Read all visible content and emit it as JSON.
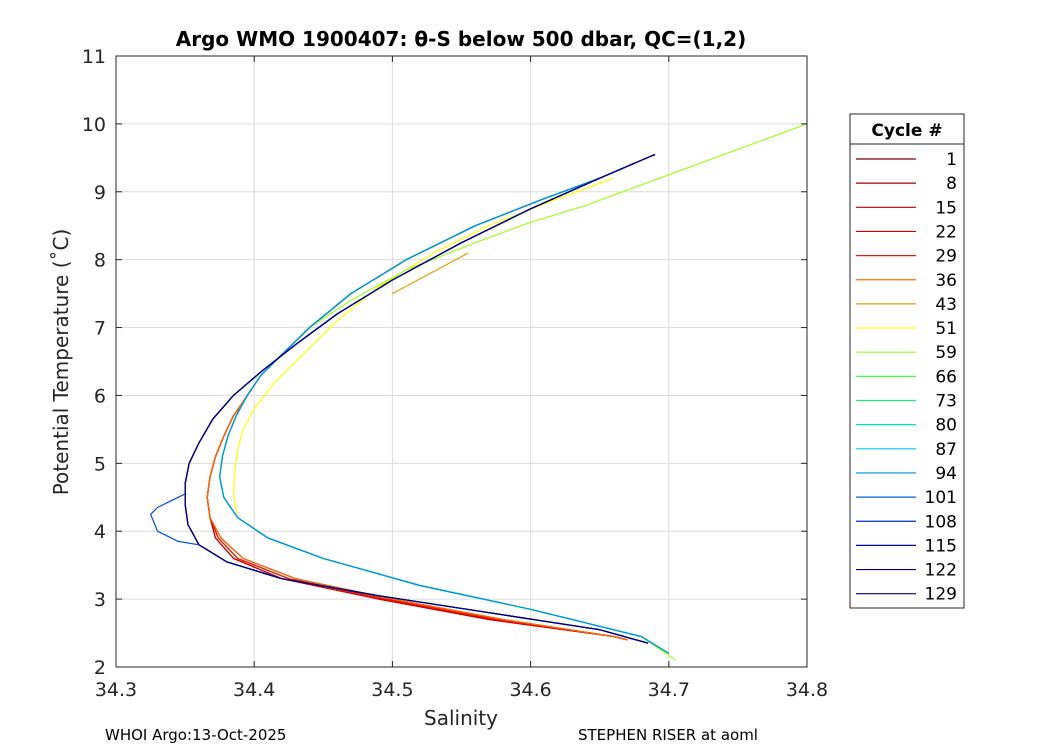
{
  "chart_data": {
    "type": "line",
    "title": "Argo WMO 1900407: θ-S below 500 dbar,  QC=(1,2)",
    "xlabel": "Salinity",
    "ylabel": "Potential Temperature (˚C)",
    "xlim": [
      34.3,
      34.8
    ],
    "ylim": [
      2,
      11
    ],
    "xticks": [
      "34.3",
      "34.4",
      "34.5",
      "34.6",
      "34.7",
      "34.8"
    ],
    "yticks": [
      "2",
      "3",
      "4",
      "5",
      "6",
      "7",
      "8",
      "9",
      "10",
      "11"
    ],
    "grid": true,
    "legend": {
      "title": "Cycle #",
      "placement": "right"
    },
    "colormap": "jet (cycle 1 dark red → cycle 129 dark blue)",
    "series": [
      {
        "name": "1",
        "color": "#800000",
        "x": [
          34.65,
          34.61,
          34.56,
          34.51,
          34.47,
          34.44,
          34.42,
          34.405,
          34.395,
          34.385,
          34.378,
          34.372,
          34.368,
          34.366,
          34.368,
          34.376,
          34.392,
          34.43,
          34.5,
          34.58,
          34.66,
          34.67
        ],
        "y": [
          9.2,
          8.9,
          8.5,
          8.0,
          7.5,
          7.0,
          6.6,
          6.3,
          6.0,
          5.7,
          5.4,
          5.1,
          4.8,
          4.5,
          4.2,
          3.9,
          3.6,
          3.3,
          3.0,
          2.7,
          2.45,
          2.4
        ]
      },
      {
        "name": "8",
        "color": "#9a0000",
        "x": [
          34.65,
          34.61,
          34.56,
          34.51,
          34.47,
          34.44,
          34.42,
          34.405,
          34.395,
          34.385,
          34.378,
          34.372,
          34.368,
          34.366,
          34.368,
          34.374,
          34.388,
          34.425,
          34.495,
          34.575,
          34.66,
          34.67
        ],
        "y": [
          9.2,
          8.9,
          8.5,
          8.0,
          7.5,
          7.0,
          6.6,
          6.3,
          6.0,
          5.7,
          5.4,
          5.1,
          4.8,
          4.5,
          4.2,
          3.9,
          3.6,
          3.3,
          3.0,
          2.7,
          2.45,
          2.4
        ]
      },
      {
        "name": "15",
        "color": "#b00000",
        "x": [
          34.65,
          34.61,
          34.56,
          34.51,
          34.47,
          34.44,
          34.42,
          34.405,
          34.395,
          34.385,
          34.378,
          34.372,
          34.368,
          34.366,
          34.368,
          34.372,
          34.385,
          34.42,
          34.49,
          34.57,
          34.66,
          34.67
        ],
        "y": [
          9.2,
          8.9,
          8.5,
          8.0,
          7.5,
          7.0,
          6.6,
          6.3,
          6.0,
          5.7,
          5.4,
          5.1,
          4.8,
          4.5,
          4.2,
          3.9,
          3.6,
          3.3,
          3.0,
          2.7,
          2.45,
          2.4
        ]
      },
      {
        "name": "22",
        "color": "#cc0000",
        "x": [
          34.65,
          34.61,
          34.56,
          34.51,
          34.47,
          34.44,
          34.42,
          34.405,
          34.395,
          34.385,
          34.378,
          34.372,
          34.368,
          34.366,
          34.368,
          34.372,
          34.385,
          34.42,
          34.49,
          34.57,
          34.66,
          34.67
        ],
        "y": [
          9.2,
          8.9,
          8.5,
          8.0,
          7.5,
          7.0,
          6.6,
          6.3,
          6.0,
          5.7,
          5.4,
          5.1,
          4.8,
          4.5,
          4.2,
          3.9,
          3.6,
          3.3,
          3.0,
          2.7,
          2.45,
          2.4
        ]
      },
      {
        "name": "29",
        "color": "#ee1800",
        "x": [
          34.65,
          34.61,
          34.56,
          34.51,
          34.47,
          34.44,
          34.42,
          34.405,
          34.395,
          34.385,
          34.378,
          34.372,
          34.368,
          34.366,
          34.368,
          34.374,
          34.388,
          34.425,
          34.495,
          34.575,
          34.66,
          34.67
        ],
        "y": [
          9.2,
          8.9,
          8.5,
          8.0,
          7.5,
          7.0,
          6.6,
          6.3,
          6.0,
          5.7,
          5.4,
          5.1,
          4.8,
          4.5,
          4.2,
          3.9,
          3.6,
          3.3,
          3.0,
          2.7,
          2.45,
          2.4
        ]
      },
      {
        "name": "36",
        "color": "#ff6a00",
        "x": [
          34.65,
          34.61,
          34.56,
          34.51,
          34.47,
          34.44,
          34.42,
          34.405,
          34.395,
          34.385,
          34.378,
          34.372,
          34.368,
          34.366,
          34.368,
          34.376,
          34.392,
          34.43,
          34.5,
          34.58,
          34.66,
          34.67
        ],
        "y": [
          9.2,
          8.9,
          8.5,
          8.0,
          7.5,
          7.0,
          6.6,
          6.3,
          6.0,
          5.7,
          5.4,
          5.1,
          4.8,
          4.5,
          4.2,
          3.9,
          3.6,
          3.3,
          3.0,
          2.7,
          2.45,
          2.4
        ]
      },
      {
        "name": "43",
        "color": "#e0a000",
        "x": [
          34.555,
          34.5
        ],
        "y": [
          8.1,
          7.5
        ]
      },
      {
        "name": "51",
        "color": "#ffff00",
        "x": [
          34.66,
          34.62,
          34.57,
          34.53,
          34.49,
          34.46,
          34.435,
          34.415,
          34.4,
          34.392,
          34.388,
          34.386,
          34.385,
          34.386,
          34.388
        ],
        "y": [
          9.2,
          8.9,
          8.5,
          8.1,
          7.6,
          7.1,
          6.6,
          6.2,
          5.8,
          5.5,
          5.2,
          4.9,
          4.6,
          4.4,
          4.25
        ]
      },
      {
        "name": "59",
        "color": "#a0ff20",
        "x": [
          34.8,
          34.76,
          34.72,
          34.68,
          34.64,
          34.6,
          34.56,
          34.51,
          34.47,
          34.44,
          34.42,
          34.405,
          34.395,
          34.387,
          34.381,
          34.377,
          34.375,
          34.378,
          34.388,
          34.41,
          34.45,
          34.52,
          34.6,
          34.68,
          34.705
        ],
        "y": [
          10.0,
          9.7,
          9.4,
          9.1,
          8.8,
          8.55,
          8.25,
          7.85,
          7.4,
          7.0,
          6.6,
          6.3,
          6.0,
          5.7,
          5.4,
          5.1,
          4.8,
          4.5,
          4.2,
          3.9,
          3.6,
          3.2,
          2.85,
          2.45,
          2.1
        ]
      },
      {
        "name": "66",
        "color": "#40ff40",
        "x": [
          34.65,
          34.61,
          34.56,
          34.51,
          34.47,
          34.44,
          34.42,
          34.405,
          34.395,
          34.387,
          34.381,
          34.377,
          34.375,
          34.378,
          34.388,
          34.41,
          34.45,
          34.52,
          34.6,
          34.68,
          34.7
        ],
        "y": [
          9.2,
          8.9,
          8.5,
          8.0,
          7.5,
          7.0,
          6.6,
          6.3,
          6.0,
          5.7,
          5.4,
          5.1,
          4.8,
          4.5,
          4.2,
          3.9,
          3.6,
          3.2,
          2.85,
          2.45,
          2.2
        ]
      },
      {
        "name": "73",
        "color": "#20e880",
        "x": [
          34.65,
          34.61,
          34.56,
          34.51,
          34.47,
          34.44,
          34.42,
          34.405,
          34.395,
          34.387,
          34.381,
          34.377,
          34.375,
          34.378,
          34.388,
          34.41,
          34.45,
          34.52,
          34.6,
          34.68,
          34.7
        ],
        "y": [
          9.2,
          8.9,
          8.5,
          8.0,
          7.5,
          7.0,
          6.6,
          6.3,
          6.0,
          5.7,
          5.4,
          5.1,
          4.8,
          4.5,
          4.2,
          3.9,
          3.6,
          3.2,
          2.85,
          2.45,
          2.2
        ]
      },
      {
        "name": "80",
        "color": "#00e0c0",
        "x": [
          34.65,
          34.61,
          34.56,
          34.51,
          34.47,
          34.44,
          34.42,
          34.405,
          34.395,
          34.387,
          34.381,
          34.377,
          34.375,
          34.378,
          34.388,
          34.41,
          34.45,
          34.52,
          34.6,
          34.68,
          34.7
        ],
        "y": [
          9.2,
          8.9,
          8.5,
          8.0,
          7.5,
          7.0,
          6.6,
          6.3,
          6.0,
          5.7,
          5.4,
          5.1,
          4.8,
          4.5,
          4.2,
          3.9,
          3.6,
          3.2,
          2.85,
          2.45,
          2.2
        ]
      },
      {
        "name": "87",
        "color": "#00c8ff",
        "x": [
          34.65,
          34.61,
          34.56,
          34.51,
          34.47,
          34.44,
          34.42,
          34.405,
          34.395,
          34.387,
          34.381,
          34.377,
          34.375,
          34.378,
          34.388,
          34.41,
          34.45,
          34.52,
          34.6,
          34.68,
          34.7
        ],
        "y": [
          9.2,
          8.9,
          8.5,
          8.0,
          7.5,
          7.0,
          6.6,
          6.3,
          6.0,
          5.7,
          5.4,
          5.1,
          4.8,
          4.5,
          4.2,
          3.9,
          3.6,
          3.2,
          2.85,
          2.45,
          2.2
        ]
      },
      {
        "name": "94",
        "color": "#0090e0",
        "x": [
          34.65,
          34.61,
          34.56,
          34.51,
          34.47,
          34.44,
          34.42,
          34.405,
          34.395,
          34.387,
          34.381,
          34.377,
          34.375,
          34.378,
          34.388,
          34.41,
          34.45,
          34.52,
          34.6,
          34.68,
          34.7
        ],
        "y": [
          9.2,
          8.9,
          8.5,
          8.0,
          7.5,
          7.0,
          6.6,
          6.3,
          6.0,
          5.7,
          5.4,
          5.1,
          4.8,
          4.5,
          4.2,
          3.9,
          3.6,
          3.2,
          2.85,
          2.45,
          2.2
        ]
      },
      {
        "name": "101",
        "color": "#0060d0",
        "x": [
          34.69,
          34.65,
          34.6,
          34.55,
          34.5,
          34.46,
          34.43,
          34.405,
          34.385,
          34.37,
          34.36,
          34.353,
          34.35,
          34.35,
          34.352,
          34.36,
          34.38,
          34.42,
          34.49,
          34.57,
          34.65,
          34.685
        ],
        "y": [
          9.55,
          9.2,
          8.75,
          8.25,
          7.7,
          7.2,
          6.75,
          6.35,
          6.0,
          5.65,
          5.3,
          5.0,
          4.7,
          4.4,
          4.1,
          3.8,
          3.55,
          3.3,
          3.05,
          2.8,
          2.55,
          2.35
        ]
      },
      {
        "name": "108",
        "color": "#0030c0",
        "x": [
          34.69,
          34.65,
          34.6,
          34.55,
          34.5,
          34.46,
          34.43,
          34.405,
          34.385,
          34.37,
          34.36,
          34.353,
          34.35,
          34.35,
          34.352,
          34.36,
          34.38,
          34.42,
          34.49,
          34.57,
          34.65,
          34.685
        ],
        "y": [
          9.55,
          9.2,
          8.75,
          8.25,
          7.7,
          7.2,
          6.75,
          6.35,
          6.0,
          5.65,
          5.3,
          5.0,
          4.7,
          4.4,
          4.1,
          3.8,
          3.55,
          3.3,
          3.05,
          2.8,
          2.55,
          2.35
        ]
      },
      {
        "name": "115",
        "color": "#0000b0",
        "x": [
          34.69,
          34.65,
          34.6,
          34.55,
          34.5,
          34.46,
          34.43,
          34.405,
          34.385,
          34.37,
          34.36,
          34.353,
          34.35,
          34.35,
          34.352,
          34.36,
          34.38,
          34.42,
          34.49,
          34.57,
          34.65,
          34.685
        ],
        "y": [
          9.55,
          9.2,
          8.75,
          8.25,
          7.7,
          7.2,
          6.75,
          6.35,
          6.0,
          5.65,
          5.3,
          5.0,
          4.7,
          4.4,
          4.1,
          3.8,
          3.55,
          3.3,
          3.05,
          2.8,
          2.55,
          2.35
        ]
      },
      {
        "name": "122",
        "color": "#000098",
        "x": [
          34.69,
          34.65,
          34.6,
          34.55,
          34.5,
          34.46,
          34.43,
          34.405,
          34.385,
          34.37,
          34.36,
          34.353,
          34.35,
          34.35,
          34.352,
          34.36,
          34.38,
          34.42,
          34.49,
          34.57,
          34.65,
          34.685
        ],
        "y": [
          9.55,
          9.2,
          8.75,
          8.25,
          7.7,
          7.2,
          6.75,
          6.35,
          6.0,
          5.65,
          5.3,
          5.0,
          4.7,
          4.4,
          4.1,
          3.8,
          3.55,
          3.3,
          3.05,
          2.8,
          2.55,
          2.35
        ]
      },
      {
        "name": "129",
        "color": "#000080",
        "x": [
          34.69,
          34.65,
          34.6,
          34.55,
          34.5,
          34.46,
          34.43,
          34.405,
          34.385,
          34.37,
          34.36,
          34.353,
          34.35,
          34.35,
          34.352,
          34.36,
          34.38,
          34.42,
          34.49,
          34.57,
          34.65,
          34.685
        ],
        "y": [
          9.55,
          9.2,
          8.75,
          8.25,
          7.7,
          7.2,
          6.75,
          6.35,
          6.0,
          5.65,
          5.3,
          5.0,
          4.7,
          4.4,
          4.1,
          3.8,
          3.55,
          3.3,
          3.05,
          2.8,
          2.55,
          2.35
        ]
      },
      {
        "name": "",
        "color": "#0050e0",
        "x": [
          34.35,
          34.34,
          34.33,
          34.325,
          34.33,
          34.345,
          34.36
        ],
        "y": [
          4.55,
          4.45,
          4.35,
          4.25,
          4.0,
          3.85,
          3.8
        ]
      }
    ]
  },
  "footer": {
    "left": "WHOI Argo:13-Oct-2025",
    "right": "STEPHEN RISER at aoml"
  }
}
